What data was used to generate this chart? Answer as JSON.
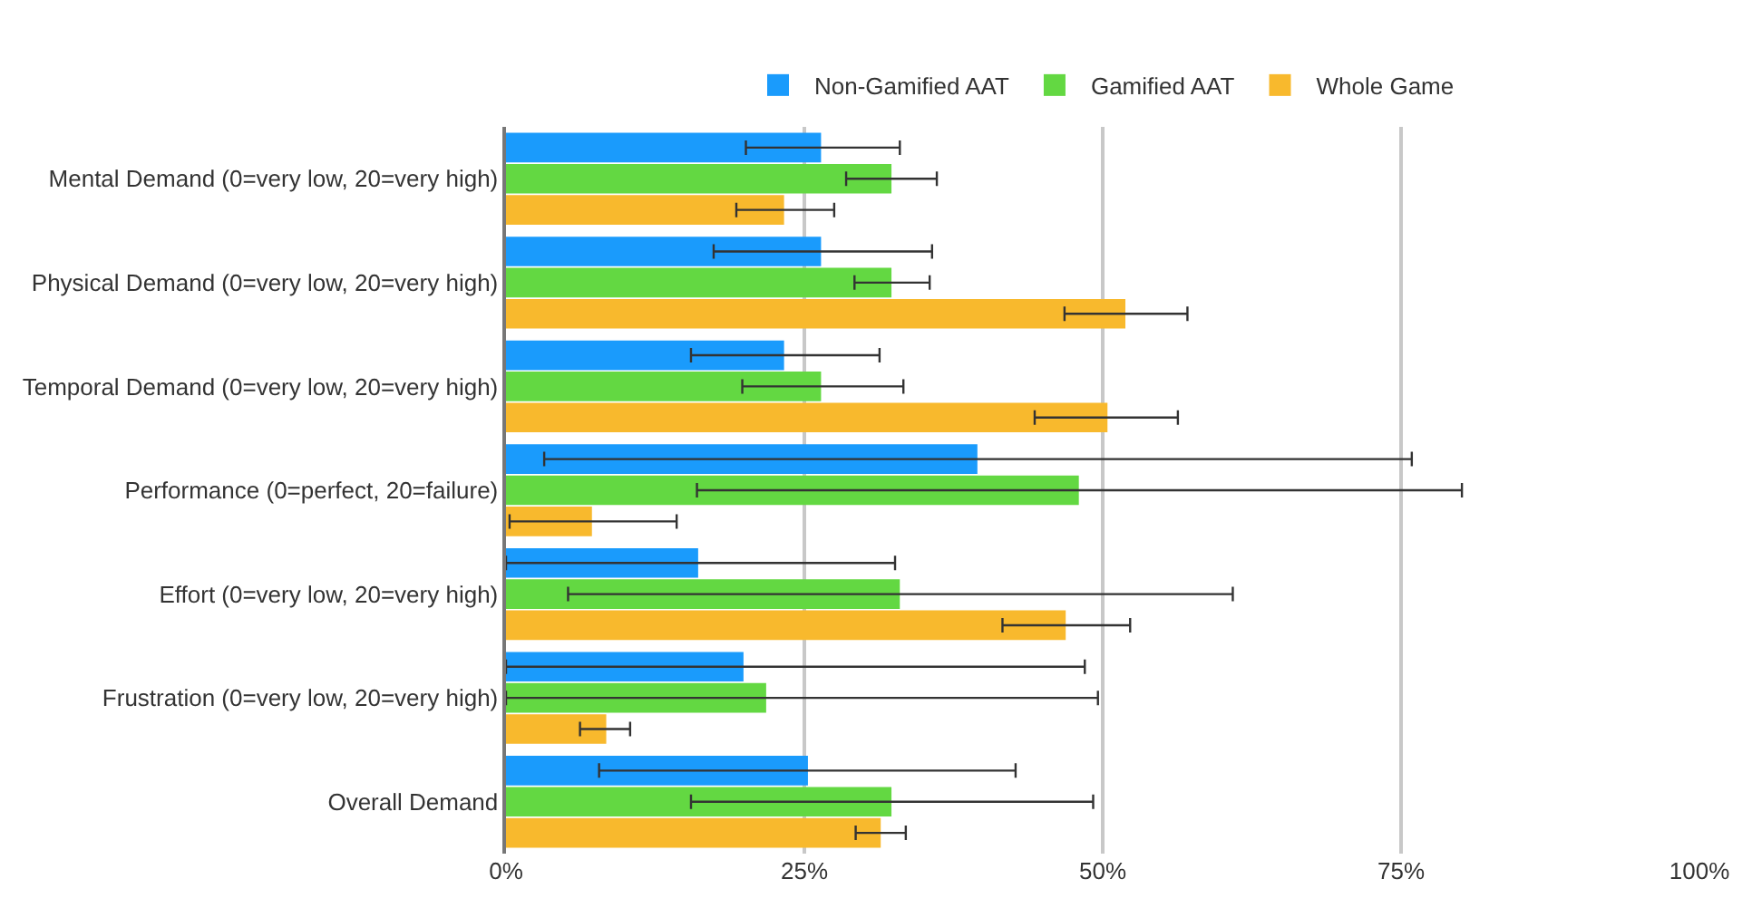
{
  "chart_data": {
    "type": "bar",
    "orientation": "horizontal",
    "legend": "top",
    "grid": "x",
    "categories": [
      "Mental Demand (0=very low, 20=very high)",
      "Physical Demand (0=very low, 20=very high)",
      "Temporal Demand (0=very low, 20=very high)",
      "Performance (0=perfect, 20=failure)",
      "Effort (0=very low, 20=very high)",
      "Frustration (0=very low, 20=very high)",
      "Overall Demand"
    ],
    "xlim": [
      0,
      100
    ],
    "xticks": [
      {
        "value": 0,
        "label": "0%"
      },
      {
        "value": 25,
        "label": "25%"
      },
      {
        "value": 50,
        "label": "50%"
      },
      {
        "value": 75,
        "label": "75%"
      },
      {
        "value": 100,
        "label": "100%"
      }
    ],
    "series": [
      {
        "name": "Non-Gamified AAT",
        "color": "#1a9bfc",
        "values": [
          26.4,
          26.4,
          23.3,
          39.5,
          16.1,
          19.9,
          25.3
        ],
        "errors": [
          [
            20.1,
            33.0
          ],
          [
            17.4,
            35.7
          ],
          [
            15.5,
            31.3
          ],
          [
            3.2,
            75.9
          ],
          [
            0,
            32.6
          ],
          [
            0,
            48.5
          ],
          [
            7.8,
            42.7
          ]
        ]
      },
      {
        "name": "Gamified AAT",
        "color": "#63d842",
        "values": [
          32.3,
          32.3,
          26.4,
          48.0,
          33.0,
          21.8,
          32.3
        ],
        "errors": [
          [
            28.5,
            36.1
          ],
          [
            29.2,
            35.5
          ],
          [
            19.8,
            33.3
          ],
          [
            16.0,
            80.1
          ],
          [
            5.2,
            60.9
          ],
          [
            0,
            49.6
          ],
          [
            15.5,
            49.2
          ]
        ]
      },
      {
        "name": "Whole Game",
        "color": "#f8b92d",
        "values": [
          23.3,
          51.9,
          50.4,
          7.2,
          46.9,
          8.4,
          31.4
        ],
        "errors": [
          [
            19.3,
            27.5
          ],
          [
            46.8,
            57.1
          ],
          [
            44.3,
            56.3
          ],
          [
            0.3,
            14.3
          ],
          [
            41.6,
            52.3
          ],
          [
            6.2,
            10.4
          ],
          [
            29.3,
            33.5
          ]
        ]
      }
    ]
  }
}
